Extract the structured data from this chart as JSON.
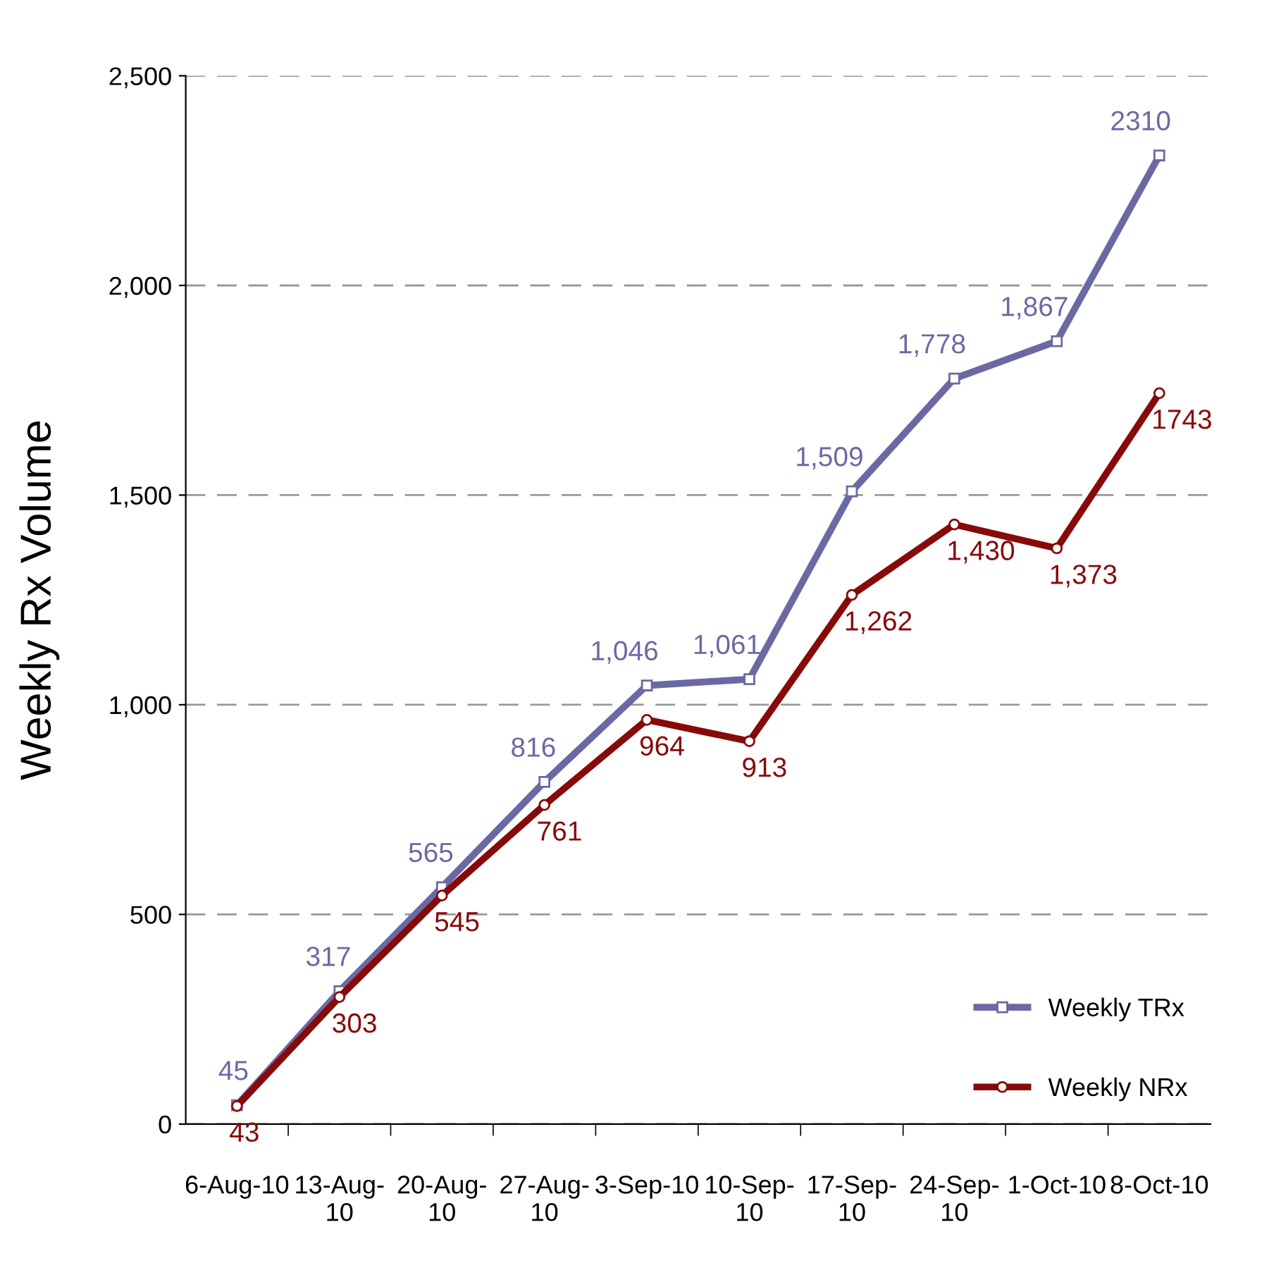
{
  "chart_data": {
    "type": "line",
    "ylabel": "Weekly Rx Volume",
    "categories": [
      "6-Aug-10",
      "13-Aug-10",
      "20-Aug-10",
      "27-Aug-10",
      "3-Sep-10",
      "10-Sep-10",
      "17-Sep-10",
      "24-Sep-10",
      "1-Oct-10",
      "8-Oct-10"
    ],
    "series": [
      {
        "name": "Weekly TRx",
        "color": "#6b69a3",
        "marker": "square",
        "values": [
          45,
          317,
          565,
          816,
          1046,
          1061,
          1509,
          1778,
          1867,
          2310
        ],
        "value_labels": [
          "45",
          "317",
          "565",
          "816",
          "1,046",
          "1,061",
          "1,509",
          "1,778",
          "1,867",
          "2310"
        ]
      },
      {
        "name": "Weekly NRx",
        "color": "#870a0a",
        "marker": "circle",
        "values": [
          43,
          303,
          545,
          761,
          964,
          913,
          1262,
          1430,
          1373,
          1743
        ],
        "value_labels": [
          "43",
          "303",
          "545",
          "761",
          "964",
          "913",
          "1,262",
          "1,430",
          "1,373",
          "1743"
        ]
      }
    ],
    "ylim": [
      0,
      2500
    ],
    "yticks": [
      0,
      {
        "value": 500,
        "label": "500"
      },
      {
        "value": 1000,
        "label": "1,000"
      },
      {
        "value": 1500,
        "label": "1,500"
      },
      {
        "value": 2000,
        "label": "2,000"
      },
      {
        "value": 2500,
        "label": "2,500"
      }
    ],
    "grid": "y",
    "legend": "bottom right",
    "line_style": "solid"
  }
}
